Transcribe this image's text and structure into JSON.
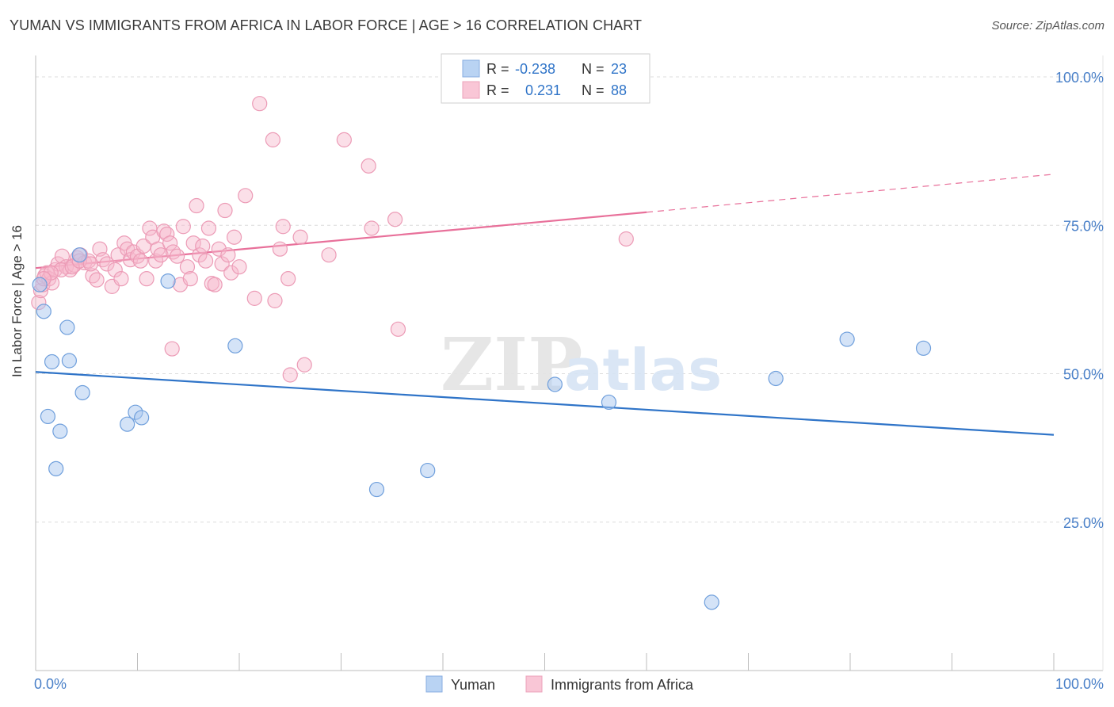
{
  "title": "YUMAN VS IMMIGRANTS FROM AFRICA IN LABOR FORCE | AGE > 16 CORRELATION CHART",
  "source": "Source: ZipAtlas.com",
  "watermark": {
    "zip": "ZIP",
    "atlas": "atlas"
  },
  "colors": {
    "blue": "#2f74c8",
    "pink": "#e8709a",
    "blue_fill": "#a9c8f0",
    "pink_fill": "#f7b7cc",
    "tick_blue": "#4a80c8"
  },
  "legend_top": [
    {
      "r_label": "R =",
      "r_value": "-0.238",
      "n_label": "N =",
      "n_value": "23"
    },
    {
      "r_label": "R =",
      "r_value": "0.231",
      "n_label": "N =",
      "n_value": "88"
    }
  ],
  "legend_bottom": [
    "Yuman",
    "Immigrants from Africa"
  ],
  "chart_data": {
    "type": "scatter",
    "title": "YUMAN VS IMMIGRANTS FROM AFRICA IN LABOR FORCE | AGE > 16 CORRELATION CHART",
    "xlabel": "",
    "ylabel": "In Labor Force | Age > 16",
    "xlim": [
      0,
      100
    ],
    "ylim": [
      0,
      105
    ],
    "x_tick_labels": [
      "0.0%",
      "100.0%"
    ],
    "y_ticks": [
      25,
      50,
      75,
      100
    ],
    "y_tick_labels": [
      "25.0%",
      "50.0%",
      "75.0%",
      "100.0%"
    ],
    "grid": true,
    "legend": "top-center",
    "series": [
      {
        "name": "Yuman",
        "r": -0.238,
        "n": 23,
        "trend": {
          "x0": 0,
          "y0": 50.3,
          "x1": 100,
          "y1": 39.7
        },
        "points": [
          [
            0.4,
            65.0
          ],
          [
            0.8,
            60.5
          ],
          [
            1.6,
            52.0
          ],
          [
            3.1,
            57.8
          ],
          [
            3.3,
            52.2
          ],
          [
            1.2,
            42.8
          ],
          [
            2.4,
            40.3
          ],
          [
            4.6,
            46.8
          ],
          [
            2.0,
            34.0
          ],
          [
            9.0,
            41.5
          ],
          [
            9.8,
            43.5
          ],
          [
            10.4,
            42.6
          ],
          [
            4.3,
            70.0
          ],
          [
            13.0,
            65.6
          ],
          [
            19.6,
            54.7
          ],
          [
            33.5,
            30.5
          ],
          [
            38.5,
            33.7
          ],
          [
            51.0,
            48.2
          ],
          [
            56.3,
            45.2
          ],
          [
            66.4,
            11.5
          ],
          [
            72.7,
            49.2
          ],
          [
            79.7,
            55.8
          ],
          [
            87.2,
            54.3
          ]
        ]
      },
      {
        "name": "Immigrants from Africa",
        "r": 0.231,
        "n": 88,
        "trend": {
          "x0": 0,
          "y0": 67.8,
          "x1": 60,
          "y1": 77.2,
          "dash_x1": 100,
          "dash_y1": 83.6
        },
        "points": [
          [
            0.3,
            62.0
          ],
          [
            0.5,
            64.0
          ],
          [
            0.7,
            65.0
          ],
          [
            0.9,
            66.5
          ],
          [
            1.1,
            67.0
          ],
          [
            1.3,
            66.0
          ],
          [
            1.6,
            65.3
          ],
          [
            1.9,
            67.5
          ],
          [
            2.2,
            68.5
          ],
          [
            2.6,
            69.8
          ],
          [
            3.0,
            68.0
          ],
          [
            3.4,
            67.5
          ],
          [
            3.8,
            68.3
          ],
          [
            4.1,
            69.5
          ],
          [
            4.4,
            70.0
          ],
          [
            4.8,
            68.7
          ],
          [
            5.2,
            69.0
          ],
          [
            5.6,
            66.5
          ],
          [
            6.0,
            65.8
          ],
          [
            6.3,
            71.0
          ],
          [
            6.6,
            69.2
          ],
          [
            7.0,
            68.5
          ],
          [
            7.5,
            64.7
          ],
          [
            7.8,
            67.5
          ],
          [
            8.1,
            70.0
          ],
          [
            8.4,
            66.0
          ],
          [
            8.7,
            72.0
          ],
          [
            9.0,
            71.0
          ],
          [
            9.3,
            69.2
          ],
          [
            9.6,
            70.5
          ],
          [
            10.0,
            69.8
          ],
          [
            10.3,
            69.0
          ],
          [
            10.6,
            71.5
          ],
          [
            10.9,
            66.0
          ],
          [
            11.2,
            74.5
          ],
          [
            11.5,
            73.0
          ],
          [
            11.8,
            69.0
          ],
          [
            12.0,
            71.0
          ],
          [
            12.3,
            70.0
          ],
          [
            12.6,
            74.0
          ],
          [
            12.9,
            73.5
          ],
          [
            13.2,
            72.0
          ],
          [
            13.5,
            70.5
          ],
          [
            13.9,
            69.8
          ],
          [
            14.2,
            65.0
          ],
          [
            14.5,
            74.8
          ],
          [
            14.9,
            68.0
          ],
          [
            15.2,
            66.0
          ],
          [
            15.5,
            72.0
          ],
          [
            15.8,
            78.3
          ],
          [
            16.1,
            70.0
          ],
          [
            16.4,
            71.5
          ],
          [
            16.7,
            69.0
          ],
          [
            17.0,
            74.5
          ],
          [
            17.3,
            65.2
          ],
          [
            17.6,
            65.0
          ],
          [
            18.0,
            71.0
          ],
          [
            18.3,
            68.5
          ],
          [
            18.6,
            77.5
          ],
          [
            18.9,
            70.0
          ],
          [
            19.2,
            67.0
          ],
          [
            19.5,
            73.0
          ],
          [
            20.0,
            68.0
          ],
          [
            20.6,
            80.0
          ],
          [
            21.5,
            62.7
          ],
          [
            22.0,
            95.5
          ],
          [
            23.3,
            89.4
          ],
          [
            23.5,
            62.3
          ],
          [
            24.0,
            71.0
          ],
          [
            24.3,
            74.8
          ],
          [
            24.8,
            66.0
          ],
          [
            25.0,
            49.8
          ],
          [
            26.4,
            51.5
          ],
          [
            26.0,
            73.0
          ],
          [
            28.8,
            70.0
          ],
          [
            30.3,
            89.4
          ],
          [
            32.7,
            85.0
          ],
          [
            33.0,
            74.5
          ],
          [
            35.3,
            76.0
          ],
          [
            35.6,
            57.5
          ],
          [
            13.4,
            54.2
          ],
          [
            2.5,
            67.5
          ],
          [
            3.6,
            68.0
          ],
          [
            1.5,
            67.0
          ],
          [
            0.8,
            66.0
          ],
          [
            4.3,
            69.0
          ],
          [
            5.4,
            68.5
          ],
          [
            58.0,
            72.7
          ]
        ]
      }
    ]
  }
}
